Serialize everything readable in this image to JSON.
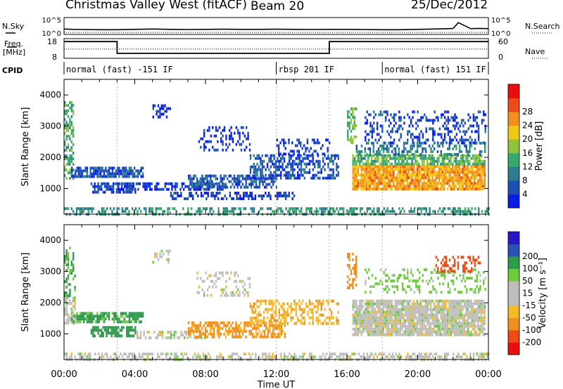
{
  "header": {
    "station": "Christmas Valley West (fitACF)",
    "beam": "Beam 20",
    "date": "25/Dec/2012"
  },
  "side_labels": {
    "nsky": "N.Sky",
    "nsearch": "N.Search",
    "freq_line1": "Freq.",
    "freq_line2": "[MHz]",
    "nave": "Nave",
    "cpid": "CPID"
  },
  "chart_data": [
    {
      "type": "line",
      "name": "noise-panel",
      "ylabel_left": "N.Sky",
      "ylabel_right": "N.Search",
      "left_ticks": [
        "10^5",
        "10^0"
      ],
      "right_ticks": [
        "10^5",
        "10^0"
      ],
      "x_hours": [
        0,
        0.5,
        1,
        2,
        3,
        4,
        5,
        6,
        7,
        8,
        9,
        10,
        11,
        12,
        13,
        14,
        15,
        16,
        17,
        18,
        19,
        20,
        21,
        22,
        22.3,
        23,
        23.5,
        24
      ],
      "nsky_level": [
        0.32,
        0.3,
        0.29,
        0.28,
        0.28,
        0.3,
        0.32,
        0.3,
        0.29,
        0.3,
        0.31,
        0.3,
        0.3,
        0.31,
        0.3,
        0.29,
        0.3,
        0.3,
        0.29,
        0.28,
        0.28,
        0.3,
        0.32,
        0.35,
        0.7,
        0.34,
        0.36,
        0.34
      ],
      "nsearch_level": [
        0.12,
        0.12,
        0.12,
        0.12,
        0.12,
        0.12,
        0.12,
        0.12,
        0.12,
        0.12,
        0.12,
        0.12,
        0.12,
        0.12,
        0.12,
        0.12,
        0.12,
        0.12,
        0.12,
        0.12,
        0.12,
        0.12,
        0.12,
        0.12,
        0.12,
        0.12,
        0.12,
        0.12
      ]
    },
    {
      "type": "line",
      "name": "frequency-panel",
      "ylabel_left": "Freq. [MHz]",
      "ylabel_right": "Nave",
      "left_ticks": [
        "18",
        "8"
      ],
      "right_ticks": [
        "60",
        "0"
      ],
      "freq_steps": [
        {
          "start": 0,
          "end": 3,
          "value": 16.5
        },
        {
          "start": 3,
          "end": 15,
          "value": 10.5
        },
        {
          "start": 15,
          "end": 24,
          "value": 16.5
        }
      ],
      "nave_level": 28
    },
    {
      "type": "table",
      "name": "cpid",
      "segments": [
        {
          "start": 0,
          "end": 12,
          "label": "normal (fast) -151 IF"
        },
        {
          "start": 12,
          "end": 18,
          "label": "rbsp 201 IF"
        },
        {
          "start": 18,
          "end": 24,
          "label": "normal (fast) 151 IF"
        }
      ]
    },
    {
      "type": "heatmap",
      "name": "power",
      "ylabel": "Slant Range [km]",
      "yticks": [
        1000,
        2000,
        3000,
        4000
      ],
      "ylim": [
        180,
        4500
      ],
      "xlim": [
        0,
        24
      ],
      "colorbar_label": "Power [dB]",
      "colorbar_ticks": [
        "4",
        "8",
        "12",
        "16",
        "20",
        "24",
        "28"
      ],
      "colorbar_colors": [
        "#0a1ee6",
        "#1f4fb4",
        "#2d7d8f",
        "#38a86c",
        "#8fc43c",
        "#f0c818",
        "#f0901e",
        "#ec4a16",
        "#e80e0e"
      ],
      "features": [
        {
          "x0": 0,
          "x1": 0.5,
          "y0": 1300,
          "y1": 3800,
          "level": 16,
          "density": 0.55
        },
        {
          "x0": 0.4,
          "x1": 4.5,
          "y0": 1400,
          "y1": 1700,
          "level": 8,
          "density": 0.8
        },
        {
          "x0": 1.5,
          "x1": 4,
          "y0": 900,
          "y1": 1200,
          "level": 7,
          "density": 0.65
        },
        {
          "x0": 3,
          "x1": 9,
          "y0": 1000,
          "y1": 1200,
          "level": 6,
          "density": 0.55
        },
        {
          "x0": 5,
          "x1": 6,
          "y0": 3300,
          "y1": 3700,
          "level": 6,
          "density": 0.4
        },
        {
          "x0": 6,
          "x1": 13,
          "y0": 700,
          "y1": 900,
          "level": 6,
          "density": 0.5
        },
        {
          "x0": 7,
          "x1": 12,
          "y0": 1000,
          "y1": 1450,
          "level": 9,
          "density": 0.6
        },
        {
          "x0": 7.5,
          "x1": 10.5,
          "y0": 2200,
          "y1": 3000,
          "level": 5,
          "density": 0.3
        },
        {
          "x0": 10.5,
          "x1": 15.5,
          "y0": 1300,
          "y1": 2100,
          "level": 8,
          "density": 0.55
        },
        {
          "x0": 12,
          "x1": 15,
          "y0": 2100,
          "y1": 2600,
          "level": 6,
          "density": 0.3
        },
        {
          "x0": 16,
          "x1": 16.5,
          "y0": 2500,
          "y1": 3600,
          "level": 18,
          "density": 0.55
        },
        {
          "x0": 16.3,
          "x1": 23.8,
          "y0": 950,
          "y1": 1750,
          "level": 27,
          "density": 0.92
        },
        {
          "x0": 16.3,
          "x1": 23.8,
          "y0": 1750,
          "y1": 2100,
          "level": 17,
          "density": 0.75
        },
        {
          "x0": 16.5,
          "x1": 23.8,
          "y0": 2100,
          "y1": 2500,
          "level": 12,
          "density": 0.45
        },
        {
          "x0": 17,
          "x1": 23.8,
          "y0": 2500,
          "y1": 3500,
          "level": 7,
          "density": 0.3
        },
        {
          "x0": 0,
          "x1": 24,
          "y0": 180,
          "y1": 400,
          "level": 14,
          "density": 0.5
        }
      ]
    },
    {
      "type": "heatmap",
      "name": "velocity",
      "ylabel": "Slant Range [km]",
      "yticks": [
        1000,
        2000,
        3000,
        4000
      ],
      "ylim": [
        180,
        4500
      ],
      "xlim": [
        0,
        24
      ],
      "xticks": [
        "00:00",
        "04:00",
        "08:00",
        "12:00",
        "16:00",
        "20:00",
        "00:00"
      ],
      "xlabel": "Time UT",
      "colorbar_label": "Velocity [m s⁻¹]",
      "colorbar_ticks": [
        "-200",
        "-100",
        "-50",
        "-15",
        "15",
        "50",
        "100",
        "200"
      ],
      "colorbar_colors": [
        "#e80e0e",
        "#ec4a16",
        "#f0901e",
        "#f4ba28",
        "#bebebe",
        "#bebebe",
        "#6ccb3c",
        "#2d9a4c",
        "#2a52b4",
        "#2418c8"
      ],
      "features": [
        {
          "x0": 0,
          "x1": 0.6,
          "y0": 1300,
          "y1": 2200,
          "value": 0,
          "density": 0.7
        },
        {
          "x0": 0,
          "x1": 0.6,
          "y0": 2200,
          "y1": 3800,
          "value": 60,
          "density": 0.3
        },
        {
          "x0": 0.4,
          "x1": 4.5,
          "y0": 1400,
          "y1": 1700,
          "value": 60,
          "density": 0.75
        },
        {
          "x0": 1.5,
          "x1": 4,
          "y0": 900,
          "y1": 1250,
          "value": 70,
          "density": 0.65
        },
        {
          "x0": 5,
          "x1": 6,
          "y0": 3300,
          "y1": 3700,
          "value": 0,
          "density": 0.35
        },
        {
          "x0": 4,
          "x1": 8,
          "y0": 850,
          "y1": 1100,
          "value": 0,
          "density": 0.45
        },
        {
          "x0": 7,
          "x1": 12.5,
          "y0": 900,
          "y1": 1400,
          "value": -60,
          "density": 0.65
        },
        {
          "x0": 7.5,
          "x1": 10.5,
          "y0": 2200,
          "y1": 3000,
          "value": 0,
          "density": 0.3
        },
        {
          "x0": 10.5,
          "x1": 15.5,
          "y0": 1300,
          "y1": 2100,
          "value": -40,
          "density": 0.5
        },
        {
          "x0": 16,
          "x1": 16.5,
          "y0": 2500,
          "y1": 3600,
          "value": -80,
          "density": 0.5
        },
        {
          "x0": 16.3,
          "x1": 23.8,
          "y0": 950,
          "y1": 2100,
          "value": 0,
          "density": 0.9
        },
        {
          "x0": 17,
          "x1": 23.8,
          "y0": 2300,
          "y1": 3100,
          "value": 30,
          "density": 0.3
        },
        {
          "x0": 21,
          "x1": 23.5,
          "y0": 3000,
          "y1": 3500,
          "value": -150,
          "density": 0.35
        },
        {
          "x0": 0,
          "x1": 24,
          "y0": 180,
          "y1": 400,
          "value": 0,
          "density": 0.5
        }
      ]
    }
  ]
}
